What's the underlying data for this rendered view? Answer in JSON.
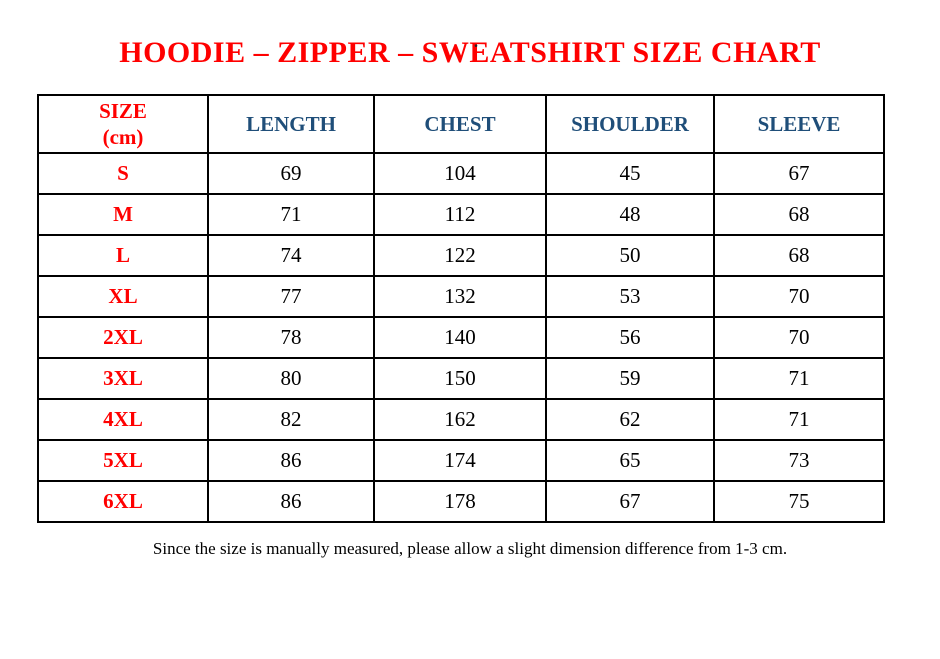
{
  "stray_dot": ".",
  "title": "HOODIE – ZIPPER – SWEATSHIRT SIZE CHART",
  "colors": {
    "title_red": "#ff0000",
    "size_label_red": "#ff0000",
    "header_blue": "#1f4e79",
    "body_text": "#000000",
    "table_border": "#000000",
    "background": "#ffffff"
  },
  "table": {
    "size_header": {
      "line1": "SIZE",
      "line2": "(cm)"
    },
    "measure_headers": [
      "LENGTH",
      "CHEST",
      "SHOULDER",
      "SLEEVE"
    ],
    "rows": [
      {
        "size": "S",
        "length": "69",
        "chest": "104",
        "shoulder": "45",
        "sleeve": "67"
      },
      {
        "size": "M",
        "length": "71",
        "chest": "112",
        "shoulder": "48",
        "sleeve": "68"
      },
      {
        "size": "L",
        "length": "74",
        "chest": "122",
        "shoulder": "50",
        "sleeve": "68"
      },
      {
        "size": "XL",
        "length": "77",
        "chest": "132",
        "shoulder": "53",
        "sleeve": "70"
      },
      {
        "size": "2XL",
        "length": "78",
        "chest": "140",
        "shoulder": "56",
        "sleeve": "70"
      },
      {
        "size": "3XL",
        "length": "80",
        "chest": "150",
        "shoulder": "59",
        "sleeve": "71"
      },
      {
        "size": "4XL",
        "length": "82",
        "chest": "162",
        "shoulder": "62",
        "sleeve": "71"
      },
      {
        "size": "5XL",
        "length": "86",
        "chest": "174",
        "shoulder": "65",
        "sleeve": "73"
      },
      {
        "size": "6XL",
        "length": "86",
        "chest": "178",
        "shoulder": "67",
        "sleeve": "75"
      }
    ]
  },
  "footer_note": "Since the size is manually measured, please allow a slight dimension difference from 1-3 cm."
}
